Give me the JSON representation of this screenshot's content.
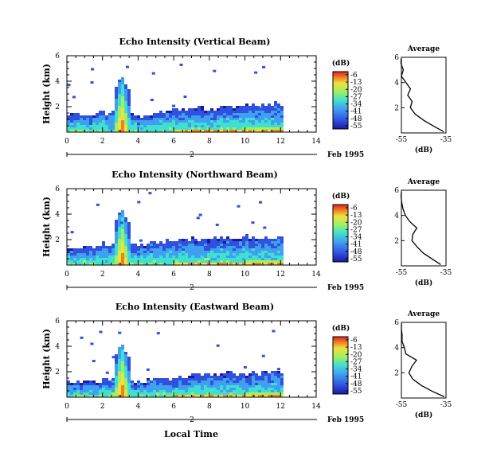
{
  "chart_data": [
    {
      "type": "heatmap",
      "title": "Echo Intensity (Vertical Beam)",
      "ylabel": "Height (km)",
      "x_ticks": [
        "0",
        "2",
        "4",
        "6",
        "8",
        "10",
        "12",
        "14"
      ],
      "y_ticks": [
        "2",
        "4",
        "6"
      ],
      "xlim": [
        0,
        14
      ],
      "ylim": [
        0,
        6
      ],
      "colorbar_unit": "(dB)",
      "colorbar_ticks": [
        "-6",
        "-13",
        "-20",
        "-27",
        "-34",
        "-41",
        "-48",
        "-55"
      ],
      "date_marker": "2",
      "date_label": "Feb 1995",
      "data_end_hour": 12,
      "plume": {
        "center_hour": 3.0,
        "top_km": 4.5
      },
      "layer_top_km": [
        [
          0,
          1.4
        ],
        [
          2,
          1.6
        ],
        [
          4,
          1.4
        ],
        [
          6,
          1.8
        ],
        [
          8,
          2.0
        ],
        [
          10,
          2.2
        ],
        [
          12,
          2.3
        ]
      ],
      "average_profile": {
        "title": "Average",
        "xlabel": "(dB)",
        "x_ticks": [
          "-55",
          "-35"
        ],
        "y_ticks": [
          "2",
          "4",
          "6"
        ],
        "xlim": [
          -55,
          -35
        ],
        "ylim": [
          0,
          6
        ],
        "height_km": [
          0.1,
          0.5,
          1,
          1.5,
          2,
          2.5,
          3,
          3.5,
          4,
          4.5,
          5,
          5.5,
          5.9
        ],
        "db": [
          -36,
          -40,
          -45,
          -49,
          -51,
          -50,
          -52,
          -51,
          -53,
          -55,
          -54,
          -55,
          -55
        ]
      }
    },
    {
      "type": "heatmap",
      "title": "Echo Intensity (Northward Beam)",
      "ylabel": "Height (km)",
      "x_ticks": [
        "0",
        "2",
        "4",
        "6",
        "8",
        "10",
        "12",
        "14"
      ],
      "y_ticks": [
        "2",
        "4",
        "6"
      ],
      "xlim": [
        0,
        14
      ],
      "ylim": [
        0,
        6
      ],
      "colorbar_unit": "(dB)",
      "colorbar_ticks": [
        "-6",
        "-13",
        "-20",
        "-27",
        "-34",
        "-41",
        "-48",
        "-55"
      ],
      "date_marker": "2",
      "date_label": "Feb 1995",
      "data_end_hour": 12,
      "plume": {
        "center_hour": 3.0,
        "top_km": 4.5
      },
      "layer_top_km": [
        [
          0,
          1.4
        ],
        [
          2,
          1.7
        ],
        [
          4,
          1.8
        ],
        [
          6,
          2.0
        ],
        [
          8,
          2.2
        ],
        [
          10,
          2.3
        ],
        [
          12,
          2.3
        ]
      ],
      "average_profile": {
        "title": "Average",
        "xlabel": "(dB)",
        "x_ticks": [
          "-55",
          "-35"
        ],
        "y_ticks": [
          "2",
          "4",
          "6"
        ],
        "xlim": [
          -55,
          -35
        ],
        "ylim": [
          0,
          6
        ],
        "height_km": [
          0.1,
          0.5,
          1,
          1.5,
          2,
          2.5,
          3,
          3.5,
          4,
          4.5,
          5,
          5.5,
          5.9
        ],
        "db": [
          -37,
          -41,
          -45,
          -48,
          -50,
          -50,
          -48,
          -51,
          -53,
          -54,
          -55,
          -55,
          -55
        ]
      }
    },
    {
      "type": "heatmap",
      "title": "Echo Intensity (Eastward Beam)",
      "ylabel": "Height (km)",
      "x_ticks": [
        "0",
        "2",
        "4",
        "6",
        "8",
        "10",
        "12",
        "14"
      ],
      "y_ticks": [
        "2",
        "4",
        "6"
      ],
      "xlim": [
        0,
        14
      ],
      "ylim": [
        0,
        6
      ],
      "colorbar_unit": "(dB)",
      "colorbar_ticks": [
        "-6",
        "-13",
        "-20",
        "-27",
        "-34",
        "-41",
        "-48",
        "-55"
      ],
      "date_marker": "2",
      "date_label": "Feb 1995",
      "xlabel": "Local Time",
      "data_end_hour": 12,
      "plume": {
        "center_hour": 3.0,
        "top_km": 4.3
      },
      "layer_top_km": [
        [
          0,
          1.2
        ],
        [
          2,
          1.4
        ],
        [
          4,
          1.3
        ],
        [
          6,
          1.6
        ],
        [
          8,
          1.9
        ],
        [
          10,
          2.0
        ],
        [
          12,
          2.1
        ]
      ],
      "average_profile": {
        "title": "Average",
        "xlabel": "(dB)",
        "x_ticks": [
          "-55",
          "-35"
        ],
        "y_ticks": [
          "2",
          "4",
          "6"
        ],
        "xlim": [
          -55,
          -35
        ],
        "ylim": [
          0,
          6
        ],
        "height_km": [
          0.1,
          0.5,
          1,
          1.5,
          2,
          2.5,
          3,
          3.5,
          4,
          4.5,
          5,
          5.5,
          5.9
        ],
        "db": [
          -36,
          -41,
          -46,
          -50,
          -52,
          -50,
          -48,
          -53,
          -54,
          -55,
          -55,
          -55,
          -55
        ]
      }
    }
  ],
  "colormap": [
    "#1a1aa0",
    "#3050e0",
    "#40a0f0",
    "#40e0d0",
    "#a0f060",
    "#f0e040",
    "#f08020",
    "#e02020"
  ]
}
